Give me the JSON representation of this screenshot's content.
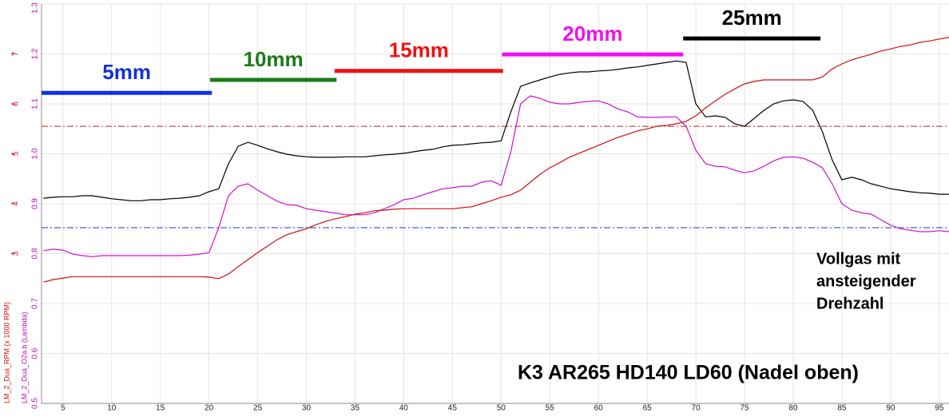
{
  "chart_data": {
    "type": "line",
    "title": "K3 AR265 HD140 LD60 (Nadel oben)",
    "notes": [
      "Vollgas mit",
      "ansteigender",
      "Drehzahl"
    ],
    "y_label": "LM_2_Dua_O2a.b (Lambda)",
    "y2_label": "LM_2_Dua_RPM (x 1000 RPM)",
    "grid": true,
    "xlim": [
      2.8,
      96
    ],
    "xticks": [
      5,
      10,
      15,
      20,
      25,
      30,
      35,
      40,
      45,
      50,
      55,
      60,
      65,
      70,
      75,
      80,
      85,
      90,
      95
    ],
    "ylim": [
      0.5,
      1.3
    ],
    "yticks": [
      0.5,
      0.6,
      0.7,
      0.8,
      0.9,
      {
        "value": 1.0,
        "label": "1.0"
      },
      1.1,
      1.2,
      1.3
    ],
    "y2lim": [
      0,
      8
    ],
    "y2ticks": [
      3,
      4,
      5,
      6,
      7
    ],
    "x": [
      3,
      4,
      5,
      6,
      7,
      8,
      9,
      10,
      11,
      12,
      13,
      14,
      15,
      16,
      17,
      18,
      19,
      20,
      21,
      22,
      23,
      24,
      25,
      26,
      27,
      28,
      29,
      30,
      31,
      32,
      33,
      34,
      35,
      36,
      37,
      38,
      39,
      40,
      41,
      42,
      43,
      44,
      45,
      46,
      47,
      48,
      49,
      50,
      51,
      52,
      53,
      54,
      55,
      56,
      57,
      58,
      59,
      60,
      61,
      62,
      63,
      64,
      65,
      66,
      67,
      68,
      69,
      70,
      71,
      72,
      73,
      74,
      75,
      76,
      77,
      78,
      79,
      80,
      81,
      82,
      83,
      84,
      85,
      86,
      87,
      88,
      89,
      90,
      91,
      92,
      93,
      94,
      95,
      96
    ],
    "series": [
      {
        "color": "#000000",
        "values": [
          0.911,
          0.913,
          0.914,
          0.914,
          0.916,
          0.916,
          0.913,
          0.91,
          0.908,
          0.906,
          0.906,
          0.908,
          0.908,
          0.91,
          0.911,
          0.913,
          0.916,
          0.924,
          0.93,
          0.98,
          1.015,
          1.023,
          1.017,
          1.01,
          1.004,
          0.999,
          0.996,
          0.994,
          0.993,
          0.993,
          0.993,
          0.994,
          0.994,
          0.994,
          0.996,
          0.998,
          0.999,
          1.001,
          1.004,
          1.007,
          1.009,
          1.014,
          1.017,
          1.018,
          1.02,
          1.022,
          1.023,
          1.026,
          1.084,
          1.135,
          1.142,
          1.148,
          1.154,
          1.159,
          1.162,
          1.164,
          1.164,
          1.166,
          1.167,
          1.169,
          1.172,
          1.174,
          1.177,
          1.18,
          1.183,
          1.186,
          1.183,
          1.1,
          1.074,
          1.076,
          1.073,
          1.06,
          1.055,
          1.071,
          1.087,
          1.1,
          1.106,
          1.108,
          1.105,
          1.087,
          1.044,
          0.988,
          0.948,
          0.953,
          0.948,
          0.94,
          0.935,
          0.93,
          0.927,
          0.924,
          0.922,
          0.921,
          0.919,
          0.919
        ]
      },
      {
        "color": "#d010d0",
        "values": [
          0.806,
          0.809,
          0.807,
          0.799,
          0.796,
          0.794,
          0.796,
          0.796,
          0.796,
          0.796,
          0.796,
          0.796,
          0.796,
          0.796,
          0.796,
          0.797,
          0.799,
          0.802,
          0.852,
          0.916,
          0.935,
          0.94,
          0.927,
          0.916,
          0.905,
          0.898,
          0.897,
          0.89,
          0.887,
          0.884,
          0.881,
          0.878,
          0.878,
          0.878,
          0.882,
          0.89,
          0.898,
          0.908,
          0.911,
          0.918,
          0.924,
          0.93,
          0.932,
          0.935,
          0.935,
          0.943,
          0.946,
          0.937,
          1.004,
          1.1,
          1.116,
          1.111,
          1.103,
          1.1,
          1.1,
          1.103,
          1.105,
          1.106,
          1.1,
          1.09,
          1.084,
          1.074,
          1.073,
          1.073,
          1.074,
          1.074,
          1.055,
          1.007,
          0.98,
          0.975,
          0.974,
          0.967,
          0.962,
          0.966,
          0.975,
          0.986,
          0.993,
          0.994,
          0.991,
          0.983,
          0.972,
          0.94,
          0.9,
          0.887,
          0.882,
          0.879,
          0.868,
          0.857,
          0.85,
          0.847,
          0.844,
          0.844,
          0.846,
          0.844
        ]
      },
      {
        "color": "#d01010",
        "axis": "y2",
        "values": [
          2.43,
          2.48,
          2.51,
          2.54,
          2.54,
          2.54,
          2.54,
          2.54,
          2.54,
          2.54,
          2.54,
          2.54,
          2.54,
          2.54,
          2.54,
          2.54,
          2.54,
          2.53,
          2.5,
          2.59,
          2.74,
          2.88,
          3.02,
          3.15,
          3.28,
          3.38,
          3.44,
          3.5,
          3.58,
          3.65,
          3.7,
          3.74,
          3.79,
          3.82,
          3.86,
          3.87,
          3.89,
          3.9,
          3.9,
          3.9,
          3.9,
          3.9,
          3.9,
          3.92,
          3.94,
          4.0,
          4.06,
          4.13,
          4.18,
          4.27,
          4.43,
          4.59,
          4.72,
          4.82,
          4.93,
          5.01,
          5.09,
          5.17,
          5.25,
          5.33,
          5.39,
          5.46,
          5.5,
          5.55,
          5.57,
          5.6,
          5.65,
          5.76,
          5.92,
          6.06,
          6.19,
          6.3,
          6.4,
          6.45,
          6.48,
          6.48,
          6.48,
          6.48,
          6.48,
          6.48,
          6.54,
          6.7,
          6.8,
          6.88,
          6.94,
          6.99,
          7.06,
          7.1,
          7.15,
          7.18,
          7.23,
          7.26,
          7.3,
          7.33
        ]
      }
    ],
    "reference_lines": [
      {
        "value": 5.55,
        "axis": "y2",
        "color": "#c02020"
      },
      {
        "value": 0.852,
        "axis": "y",
        "color": "#2030d0"
      }
    ],
    "segments": [
      {
        "label": "5mm",
        "x": [
          2.8,
          20.3
        ],
        "y": 1.122,
        "color": "#1030e0"
      },
      {
        "label": "10mm",
        "x": [
          20.1,
          33.1
        ],
        "y": 1.148,
        "color": "#1a7a1a"
      },
      {
        "label": "15mm",
        "x": [
          32.9,
          50.2
        ],
        "y": 1.166,
        "color": "#f01010"
      },
      {
        "label": "20mm",
        "x": [
          50.1,
          68.7
        ],
        "y": 1.199,
        "color": "#f010f0"
      },
      {
        "label": "25mm",
        "x": [
          68.7,
          82.8
        ],
        "y": 1.231,
        "color": "#000000"
      }
    ]
  }
}
